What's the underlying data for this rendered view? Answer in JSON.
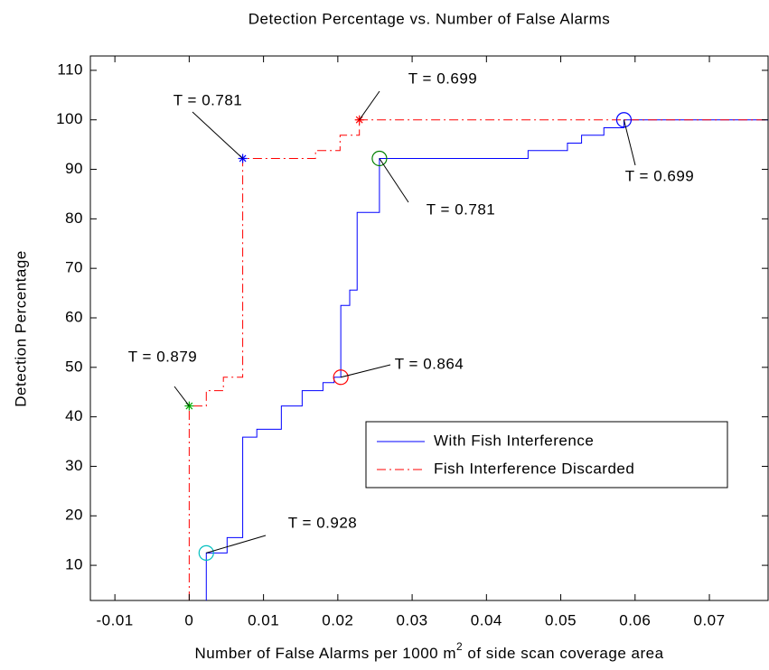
{
  "chart_data": {
    "type": "line",
    "title": "Detection Percentage vs. Number of False Alarms",
    "xlabel": [
      "Number of False Alarms per 1000 m",
      "2",
      " of side scan coverage area"
    ],
    "ylabel": "Detection Percentage",
    "xlim": [
      -0.0133,
      0.0779
    ],
    "ylim": [
      2.9,
      112.9
    ],
    "xticks": [
      -0.01,
      0,
      0.01,
      0.02,
      0.03,
      0.04,
      0.05,
      0.06,
      0.07
    ],
    "yticks": [
      10,
      20,
      30,
      40,
      50,
      60,
      70,
      80,
      90,
      100,
      110
    ],
    "grid": false,
    "legend": "lower right",
    "series": [
      {
        "name": "With Fish Interference",
        "color": "#0000ff",
        "style": "solid",
        "x": [
          0.0023,
          0.0023,
          0.0051,
          0.0051,
          0.0072,
          0.0072,
          0.0091,
          0.0091,
          0.0124,
          0.0124,
          0.0152,
          0.0152,
          0.018,
          0.018,
          0.0195,
          0.0195,
          0.0204,
          0.0204,
          0.0216,
          0.0216,
          0.0226,
          0.0226,
          0.0256,
          0.0256,
          0.0456,
          0.0456,
          0.0509,
          0.0509,
          0.0528,
          0.0528,
          0.0558,
          0.0558,
          0.0585,
          0.0585,
          0.0779
        ],
        "values": [
          2.9,
          12.5,
          12.5,
          15.6,
          15.6,
          35.9,
          35.9,
          37.5,
          37.5,
          42.2,
          42.2,
          45.3,
          45.3,
          46.9,
          46.9,
          48,
          48,
          62.5,
          62.5,
          65.6,
          65.6,
          81.3,
          81.3,
          92.2,
          92.2,
          93.8,
          93.8,
          95.3,
          95.3,
          96.9,
          96.9,
          98.4,
          98.4,
          100,
          100
        ]
      },
      {
        "name": "Fish Interference Discarded",
        "color": "#ff0000",
        "style": "dashdot",
        "x": [
          0,
          0,
          0.0023,
          0.0023,
          0.0046,
          0.0046,
          0.0072,
          0.0072,
          0.017,
          0.017,
          0.0203,
          0.0203,
          0.0229,
          0.0229,
          0.0779
        ],
        "values": [
          2.9,
          42.2,
          42.2,
          45.3,
          45.3,
          48,
          48,
          92.2,
          92.2,
          93.8,
          93.8,
          96.9,
          96.9,
          100,
          100
        ]
      }
    ],
    "points": [
      {
        "x": 0,
        "y": 42.2,
        "marker": "star",
        "color": "#00aa00",
        "label": "T = 0.879"
      },
      {
        "x": 0.0072,
        "y": 92.2,
        "marker": "star",
        "color": "#0000ff",
        "label": "T = 0.781"
      },
      {
        "x": 0.0229,
        "y": 100,
        "marker": "star",
        "color": "#ff0000",
        "label": "T = 0.699"
      },
      {
        "x": 0.0023,
        "y": 12.5,
        "marker": "circle",
        "color": "#00bfbf",
        "label": "T = 0.928"
      },
      {
        "x": 0.0204,
        "y": 48,
        "marker": "circle",
        "color": "#ff0000",
        "label": "T = 0.864"
      },
      {
        "x": 0.0256,
        "y": 92.2,
        "marker": "circle",
        "color": "#008000",
        "label": "T = 0.781"
      },
      {
        "x": 0.0585,
        "y": 100,
        "marker": "circle",
        "color": "#0000ff",
        "label": "T = 0.699"
      }
    ]
  }
}
